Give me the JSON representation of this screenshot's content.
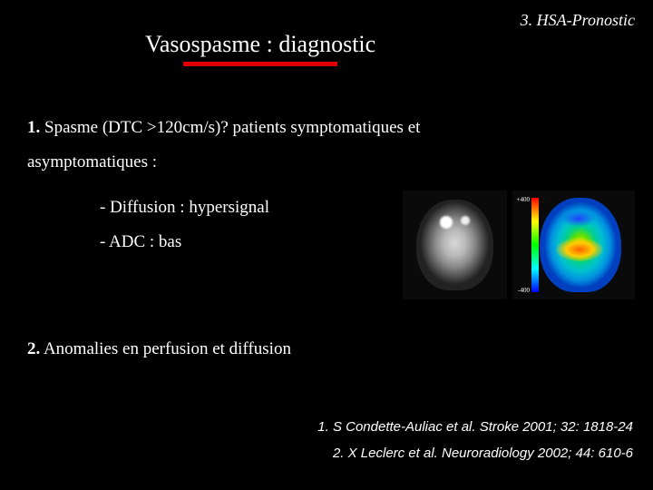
{
  "header": {
    "label": "3. HSA-Pronostic"
  },
  "title": {
    "text": "Vasospasme : diagnostic",
    "underline_color": "#e00000"
  },
  "point1": {
    "num": "1.",
    "text_a": "Spasme (DTC >120cm/s)? patients symptomatiques et",
    "text_b": "asymptomatiques :",
    "sub_a": "- Diffusion : hypersignal",
    "sub_b": "- ADC : bas"
  },
  "point2": {
    "num": "2.",
    "text": "Anomalies en perfusion et diffusion"
  },
  "images": {
    "diffusion": {
      "type": "medical-scan-grayscale"
    },
    "perfusion": {
      "type": "medical-scan-colormap",
      "colorbar_top": "+400",
      "colorbar_bot": "-400",
      "colorbar_gradient": [
        "#ff0000",
        "#ffff00",
        "#00ff00",
        "#00ffff",
        "#0000ff"
      ]
    }
  },
  "references": {
    "r1": "1.  S Condette-Auliac et al. Stroke 2001; 32: 1818-24",
    "r2": "2.  X Leclerc et al. Neuroradiology 2002; 44: 610-6"
  },
  "colors": {
    "background": "#000000",
    "text": "#ffffff",
    "accent": "#e00000"
  }
}
